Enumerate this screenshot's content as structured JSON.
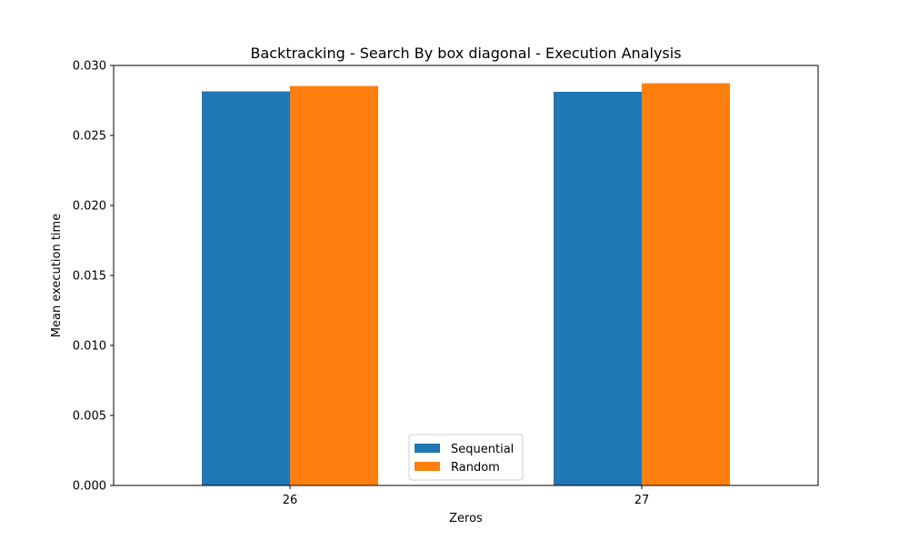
{
  "chart_data": {
    "type": "bar",
    "title": "Backtracking - Search By box diagonal - Execution Analysis",
    "xlabel": "Zeros",
    "ylabel": "Mean execution time",
    "categories": [
      "26",
      "27"
    ],
    "series": [
      {
        "name": "Sequential",
        "color": "#1f77b4",
        "values": [
          0.02815,
          0.02812
        ]
      },
      {
        "name": "Random",
        "color": "#ff7f0e",
        "values": [
          0.02853,
          0.02873
        ]
      }
    ],
    "ylim": [
      0,
      0.03
    ],
    "yticks": [
      "0.000",
      "0.005",
      "0.010",
      "0.015",
      "0.020",
      "0.025",
      "0.030"
    ],
    "grid": false,
    "legend_position": "bottom-center"
  }
}
